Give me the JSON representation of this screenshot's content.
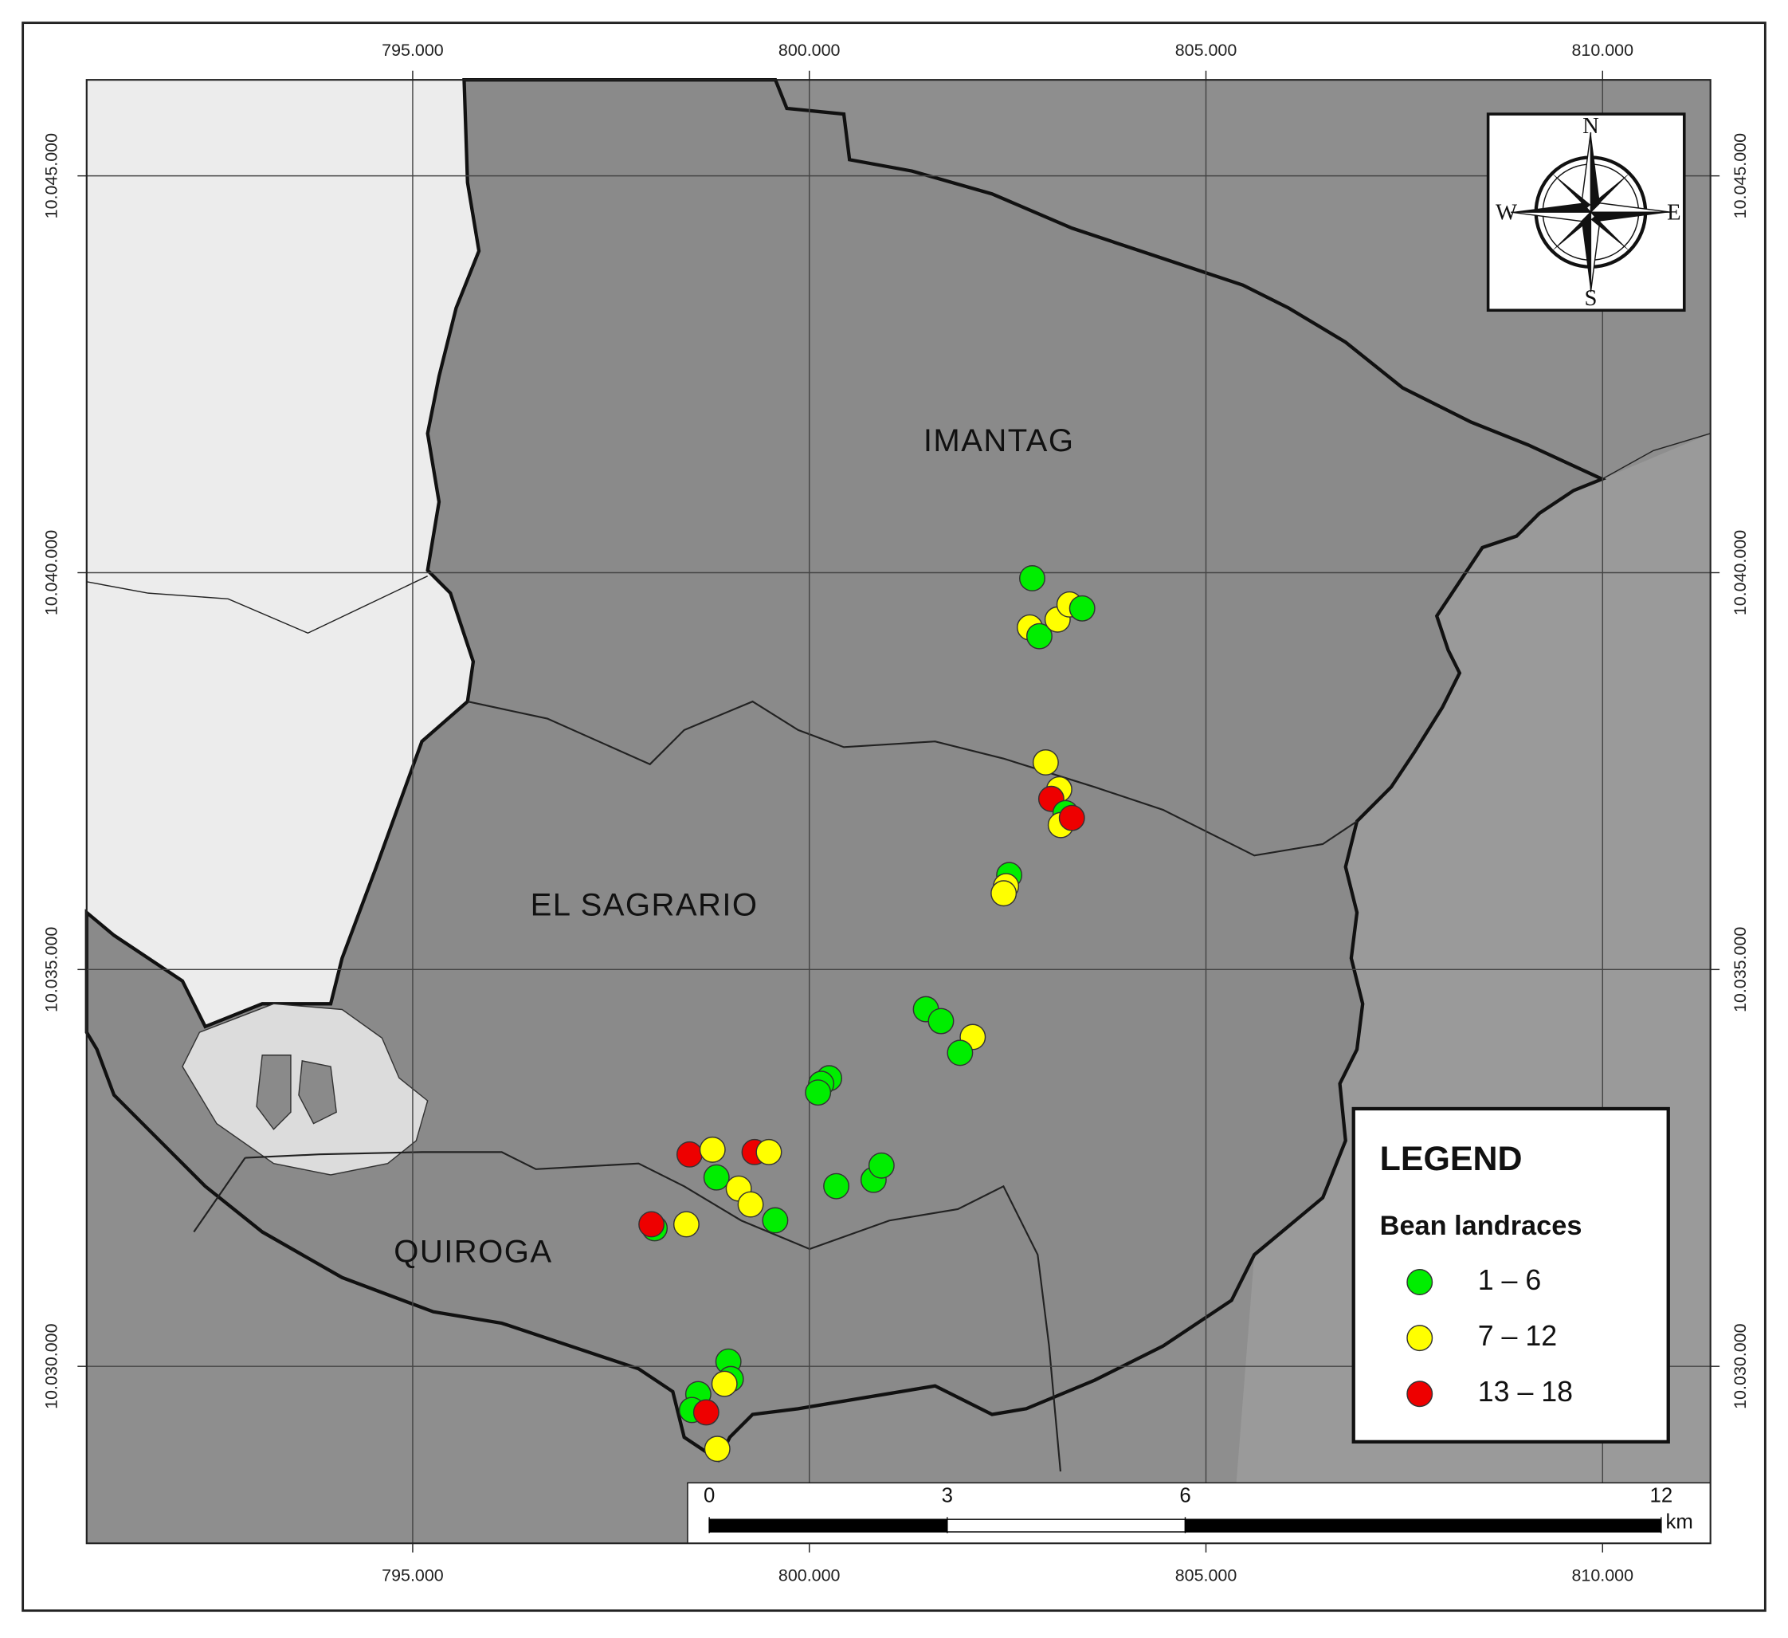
{
  "map": {
    "grid_x": [
      {
        "value": 795000,
        "label": "795.000"
      },
      {
        "value": 800000,
        "label": "800.000"
      },
      {
        "value": 805000,
        "label": "805.000"
      },
      {
        "value": 810000,
        "label": "810.000"
      }
    ],
    "grid_y": [
      {
        "value": 10045000,
        "label": "10.045.000"
      },
      {
        "value": 10040000,
        "label": "10.040.000"
      },
      {
        "value": 10035000,
        "label": "10.035.000"
      },
      {
        "value": 10030000,
        "label": "10.030.000"
      }
    ],
    "xlim": [
      790890,
      811360
    ],
    "ylim": [
      10027770,
      10046210
    ],
    "regions": [
      "IMANTAG",
      "EL SAGRARIO",
      "QUIROGA"
    ],
    "compass": {
      "n": "N",
      "e": "E",
      "s": "S",
      "w": "W"
    },
    "legend": {
      "title": "LEGEND",
      "subtitle": "Bean landraces",
      "classes": [
        {
          "label": "1 – 6",
          "color": "#00ee00"
        },
        {
          "label": "7 – 12",
          "color": "#ffff00"
        },
        {
          "label": "13 – 18",
          "color": "#ee0000"
        }
      ]
    },
    "points": [
      {
        "x": 802810,
        "y": 10039930,
        "class": 0
      },
      {
        "x": 802780,
        "y": 10039310,
        "class": 1
      },
      {
        "x": 802900,
        "y": 10039200,
        "class": 0
      },
      {
        "x": 803130,
        "y": 10039410,
        "class": 1
      },
      {
        "x": 803280,
        "y": 10039600,
        "class": 1
      },
      {
        "x": 803440,
        "y": 10039550,
        "class": 0
      },
      {
        "x": 802980,
        "y": 10037610,
        "class": 1
      },
      {
        "x": 803150,
        "y": 10037270,
        "class": 1
      },
      {
        "x": 803050,
        "y": 10037150,
        "class": 2
      },
      {
        "x": 803230,
        "y": 10036970,
        "class": 0
      },
      {
        "x": 803170,
        "y": 10036820,
        "class": 1
      },
      {
        "x": 803310,
        "y": 10036910,
        "class": 2
      },
      {
        "x": 802520,
        "y": 10036190,
        "class": 0
      },
      {
        "x": 802480,
        "y": 10036050,
        "class": 1
      },
      {
        "x": 802450,
        "y": 10035960,
        "class": 1
      },
      {
        "x": 801470,
        "y": 10034500,
        "class": 0
      },
      {
        "x": 801660,
        "y": 10034350,
        "class": 0
      },
      {
        "x": 802060,
        "y": 10034150,
        "class": 1
      },
      {
        "x": 801900,
        "y": 10033950,
        "class": 0
      },
      {
        "x": 800250,
        "y": 10033630,
        "class": 0
      },
      {
        "x": 800150,
        "y": 10033560,
        "class": 0
      },
      {
        "x": 800110,
        "y": 10033450,
        "class": 0
      },
      {
        "x": 798490,
        "y": 10032670,
        "class": 2
      },
      {
        "x": 798780,
        "y": 10032730,
        "class": 1
      },
      {
        "x": 798830,
        "y": 10032380,
        "class": 0
      },
      {
        "x": 799310,
        "y": 10032700,
        "class": 2
      },
      {
        "x": 799490,
        "y": 10032700,
        "class": 1
      },
      {
        "x": 799110,
        "y": 10032240,
        "class": 1
      },
      {
        "x": 799260,
        "y": 10032040,
        "class": 1
      },
      {
        "x": 799570,
        "y": 10031840,
        "class": 0
      },
      {
        "x": 800340,
        "y": 10032270,
        "class": 0
      },
      {
        "x": 800810,
        "y": 10032350,
        "class": 0
      },
      {
        "x": 800910,
        "y": 10032530,
        "class": 0
      },
      {
        "x": 798050,
        "y": 10031740,
        "class": 0
      },
      {
        "x": 798010,
        "y": 10031790,
        "class": 2
      },
      {
        "x": 798450,
        "y": 10031790,
        "class": 1
      },
      {
        "x": 798980,
        "y": 10030060,
        "class": 0
      },
      {
        "x": 799010,
        "y": 10029840,
        "class": 0
      },
      {
        "x": 798930,
        "y": 10029780,
        "class": 1
      },
      {
        "x": 798600,
        "y": 10029650,
        "class": 0
      },
      {
        "x": 798520,
        "y": 10029450,
        "class": 0
      },
      {
        "x": 798700,
        "y": 10029420,
        "class": 2
      },
      {
        "x": 798840,
        "y": 10028960,
        "class": 1
      }
    ],
    "scale_bar": {
      "ticks": [
        0,
        3,
        6,
        12
      ],
      "unit": "km"
    }
  }
}
